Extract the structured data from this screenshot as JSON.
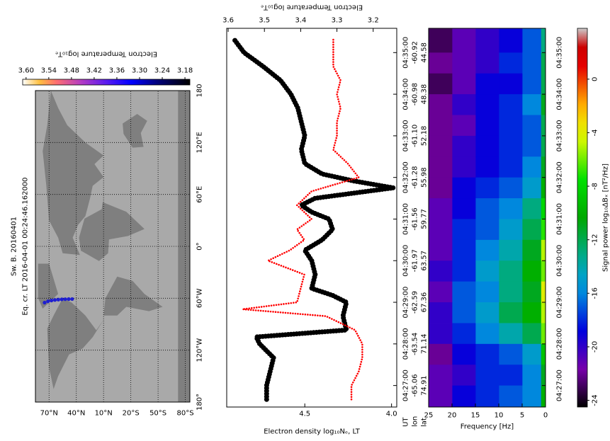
{
  "chart_data": [
    {
      "type": "map",
      "title": "Sw. B. 20160401",
      "subtitle": "Eq. cr. LT  2016-04-01 00:24:46.162000",
      "xlim": [
        -180,
        180
      ],
      "ylim": [
        -85,
        85
      ],
      "xticks": [
        {
          "value": -180,
          "label": "180°"
        },
        {
          "value": -120,
          "label": "120°W"
        },
        {
          "value": -60,
          "label": "60°W"
        },
        {
          "value": 0,
          "label": "0°"
        },
        {
          "value": 60,
          "label": "60°E"
        },
        {
          "value": 120,
          "label": "120°E"
        },
        {
          "value": 180,
          "label": "180"
        }
      ],
      "yticks": [
        {
          "value": 70,
          "label": "70°N"
        },
        {
          "value": 40,
          "label": "40°N"
        },
        {
          "value": 10,
          "label": "10°N"
        },
        {
          "value": -20,
          "label": "20°S"
        },
        {
          "value": -50,
          "label": "50°S"
        },
        {
          "value": -80,
          "label": "80°S"
        }
      ],
      "grid": true,
      "track": {
        "color": "#1f1fd0",
        "lon": [
          -65.06,
          -63.54,
          -62.59,
          -61.97,
          -61.56,
          -61.28,
          -61.1,
          -60.98,
          -60.92
        ],
        "lat": [
          74.91,
          71.14,
          67.36,
          63.57,
          59.77,
          55.98,
          52.18,
          48.38,
          44.58
        ]
      },
      "colorbar": {
        "label": "Electron Temperature log₁₀Tₑ",
        "clim": [
          3.167,
          3.609
        ],
        "colormap": "gnuplot2",
        "ticks": [
          {
            "value": 3.6,
            "label": "3.60"
          },
          3.54,
          3.48,
          3.42,
          3.36,
          {
            "value": 3.3,
            "label": "3.30"
          },
          3.24,
          3.18
        ]
      }
    },
    {
      "type": "scatter",
      "xlim": [
        "04:26:29",
        "04:35:35"
      ],
      "xticks": [
        "04:27:00",
        "04:28:00",
        "04:29:00",
        "04:30:00",
        "04:31:00",
        "04:32:00",
        "04:33:00",
        "04:34:00",
        "04:35:00"
      ],
      "row_labels": [
        "UT",
        "lon",
        "lat"
      ],
      "lon_labels": [
        -65.06,
        -63.54,
        -62.59,
        -61.97,
        -61.56,
        -61.28,
        {
          "value": -61.1,
          "label": "-61.10"
        },
        -60.98,
        -60.92
      ],
      "lat_labels": [
        74.91,
        71.14,
        67.36,
        63.57,
        59.77,
        55.98,
        52.18,
        48.38,
        44.58
      ],
      "ylabel": "Electron density log₁₀Nₑ, LT",
      "ylim": [
        3.97,
        4.95
      ],
      "yticks": [
        {
          "value": 4,
          "label": "4.0"
        },
        4.5
      ],
      "y2label": "Electron Temperature log₁₀Tₑ",
      "y2lim": [
        3.135,
        3.604
      ],
      "y2ticks": [
        3.2,
        3.3,
        3.4,
        3.5,
        3.6
      ],
      "series": [
        {
          "color": "#000000",
          "x": [
            "04:26:40",
            "04:27:00",
            "04:27:20",
            "04:27:40",
            "04:28:00",
            "04:28:10",
            "04:28:20",
            "04:28:40",
            "04:29:00",
            "04:29:10",
            "04:29:20",
            "04:29:40",
            "04:30:00",
            "04:30:15",
            "04:30:30",
            "04:30:45",
            "04:31:00",
            "04:31:10",
            "04:31:20",
            "04:31:30",
            "04:31:45",
            "04:31:55",
            "04:32:05",
            "04:32:20",
            "04:32:40",
            "04:33:00",
            "04:33:20",
            "04:33:40",
            "04:34:00",
            "04:34:20",
            "04:34:40",
            "04:35:00",
            "04:35:20"
          ],
          "values": [
            4.72,
            4.72,
            4.7,
            4.68,
            4.76,
            4.78,
            4.26,
            4.28,
            4.26,
            4.34,
            4.46,
            4.44,
            4.46,
            4.5,
            4.4,
            4.34,
            4.36,
            4.46,
            4.52,
            4.44,
            3.99,
            4.22,
            4.4,
            4.5,
            4.52,
            4.5,
            4.52,
            4.54,
            4.58,
            4.64,
            4.74,
            4.85,
            4.91
          ]
        },
        {
          "color": "#ff0000",
          "axis": "y2",
          "x": [
            "04:26:40",
            "04:27:00",
            "04:27:20",
            "04:27:40",
            "04:28:00",
            "04:28:20",
            "04:28:40",
            "04:28:50",
            "04:29:00",
            "04:29:20",
            "04:29:40",
            "04:30:00",
            "04:30:15",
            "04:30:30",
            "04:30:45",
            "04:31:00",
            "04:31:20",
            "04:31:40",
            "04:32:00",
            "04:32:20",
            "04:32:40",
            "04:33:00",
            "04:33:20",
            "04:33:40",
            "04:34:00",
            "04:34:20",
            "04:34:40",
            "04:35:00",
            "04:35:20"
          ],
          "values": [
            3.26,
            3.26,
            3.24,
            3.23,
            3.23,
            3.25,
            3.33,
            3.56,
            3.41,
            3.4,
            3.39,
            3.49,
            3.43,
            3.39,
            3.41,
            3.37,
            3.41,
            3.37,
            3.24,
            3.27,
            3.31,
            3.3,
            3.3,
            3.29,
            3.3,
            3.29,
            3.31,
            3.31,
            3.31
          ]
        }
      ]
    },
    {
      "type": "spectrogram",
      "xlim": [
        "04:26:29",
        "04:35:35"
      ],
      "xticks": [
        "04:27:00",
        "04:28:00",
        "04:29:00",
        "04:30:00",
        "04:31:00",
        "04:32:00",
        "04:33:00",
        "04:34:00",
        "04:35:00"
      ],
      "ylabel": "Frequency [Hz]",
      "ylim": [
        0,
        25
      ],
      "yticks": [
        0,
        5,
        10,
        15,
        20,
        25
      ],
      "time_edges": [
        "04:26:29",
        "04:27:00",
        "04:27:30",
        "04:28:00",
        "04:28:30",
        "04:29:00",
        "04:29:30",
        "04:30:00",
        "04:30:30",
        "04:31:00",
        "04:31:30",
        "04:32:00",
        "04:32:30",
        "04:33:00",
        "04:33:30",
        "04:34:00",
        "04:34:30",
        "04:35:00",
        "04:35:35"
      ],
      "freq_edges": [
        0,
        1,
        5,
        10,
        15,
        20,
        25
      ],
      "values": [
        [
          -10,
          -16,
          -17,
          -18,
          -19,
          -21
        ],
        [
          -11,
          -16,
          -18,
          -18,
          -20,
          -21
        ],
        [
          -9,
          -15,
          -17,
          -18,
          -19,
          -22
        ],
        [
          -6,
          -12,
          -14,
          -16,
          -18,
          -20
        ],
        [
          -5,
          -10,
          -12,
          -15,
          -17,
          -20
        ],
        [
          -4,
          -11,
          -13,
          -16,
          -17,
          -21
        ],
        [
          -6,
          -10,
          -13,
          -15,
          -18,
          -20
        ],
        [
          -5,
          -11,
          -14,
          -16,
          -18,
          -21
        ],
        [
          -7,
          -12,
          -15,
          -17,
          -18,
          -21
        ],
        [
          -8,
          -13,
          -16,
          -17,
          -19,
          -21
        ],
        [
          -10,
          -15,
          -17,
          -18,
          -19,
          -22
        ],
        [
          -11,
          -16,
          -18,
          -19,
          -20,
          -22
        ],
        [
          -12,
          -17,
          -18,
          -19,
          -20,
          -22
        ],
        [
          -12,
          -17,
          -18,
          -19,
          -21,
          -22
        ],
        [
          -11,
          -16,
          -18,
          -19,
          -20,
          -22
        ],
        [
          -12,
          -17,
          -19,
          -19,
          -21,
          -23
        ],
        [
          -12,
          -17,
          -18,
          -20,
          -21,
          -22
        ],
        [
          -13,
          -17,
          -19,
          -20,
          -21,
          -23
        ]
      ],
      "colorbar": {
        "label": "Signal power log₁₀ΔBₓ [nT²/Hz]",
        "clim": [
          -24.5,
          3.8
        ],
        "colormap": "nipy_spectral",
        "ticks": [
          -24,
          -20,
          -16,
          -12,
          -8,
          -4,
          0
        ]
      }
    }
  ]
}
